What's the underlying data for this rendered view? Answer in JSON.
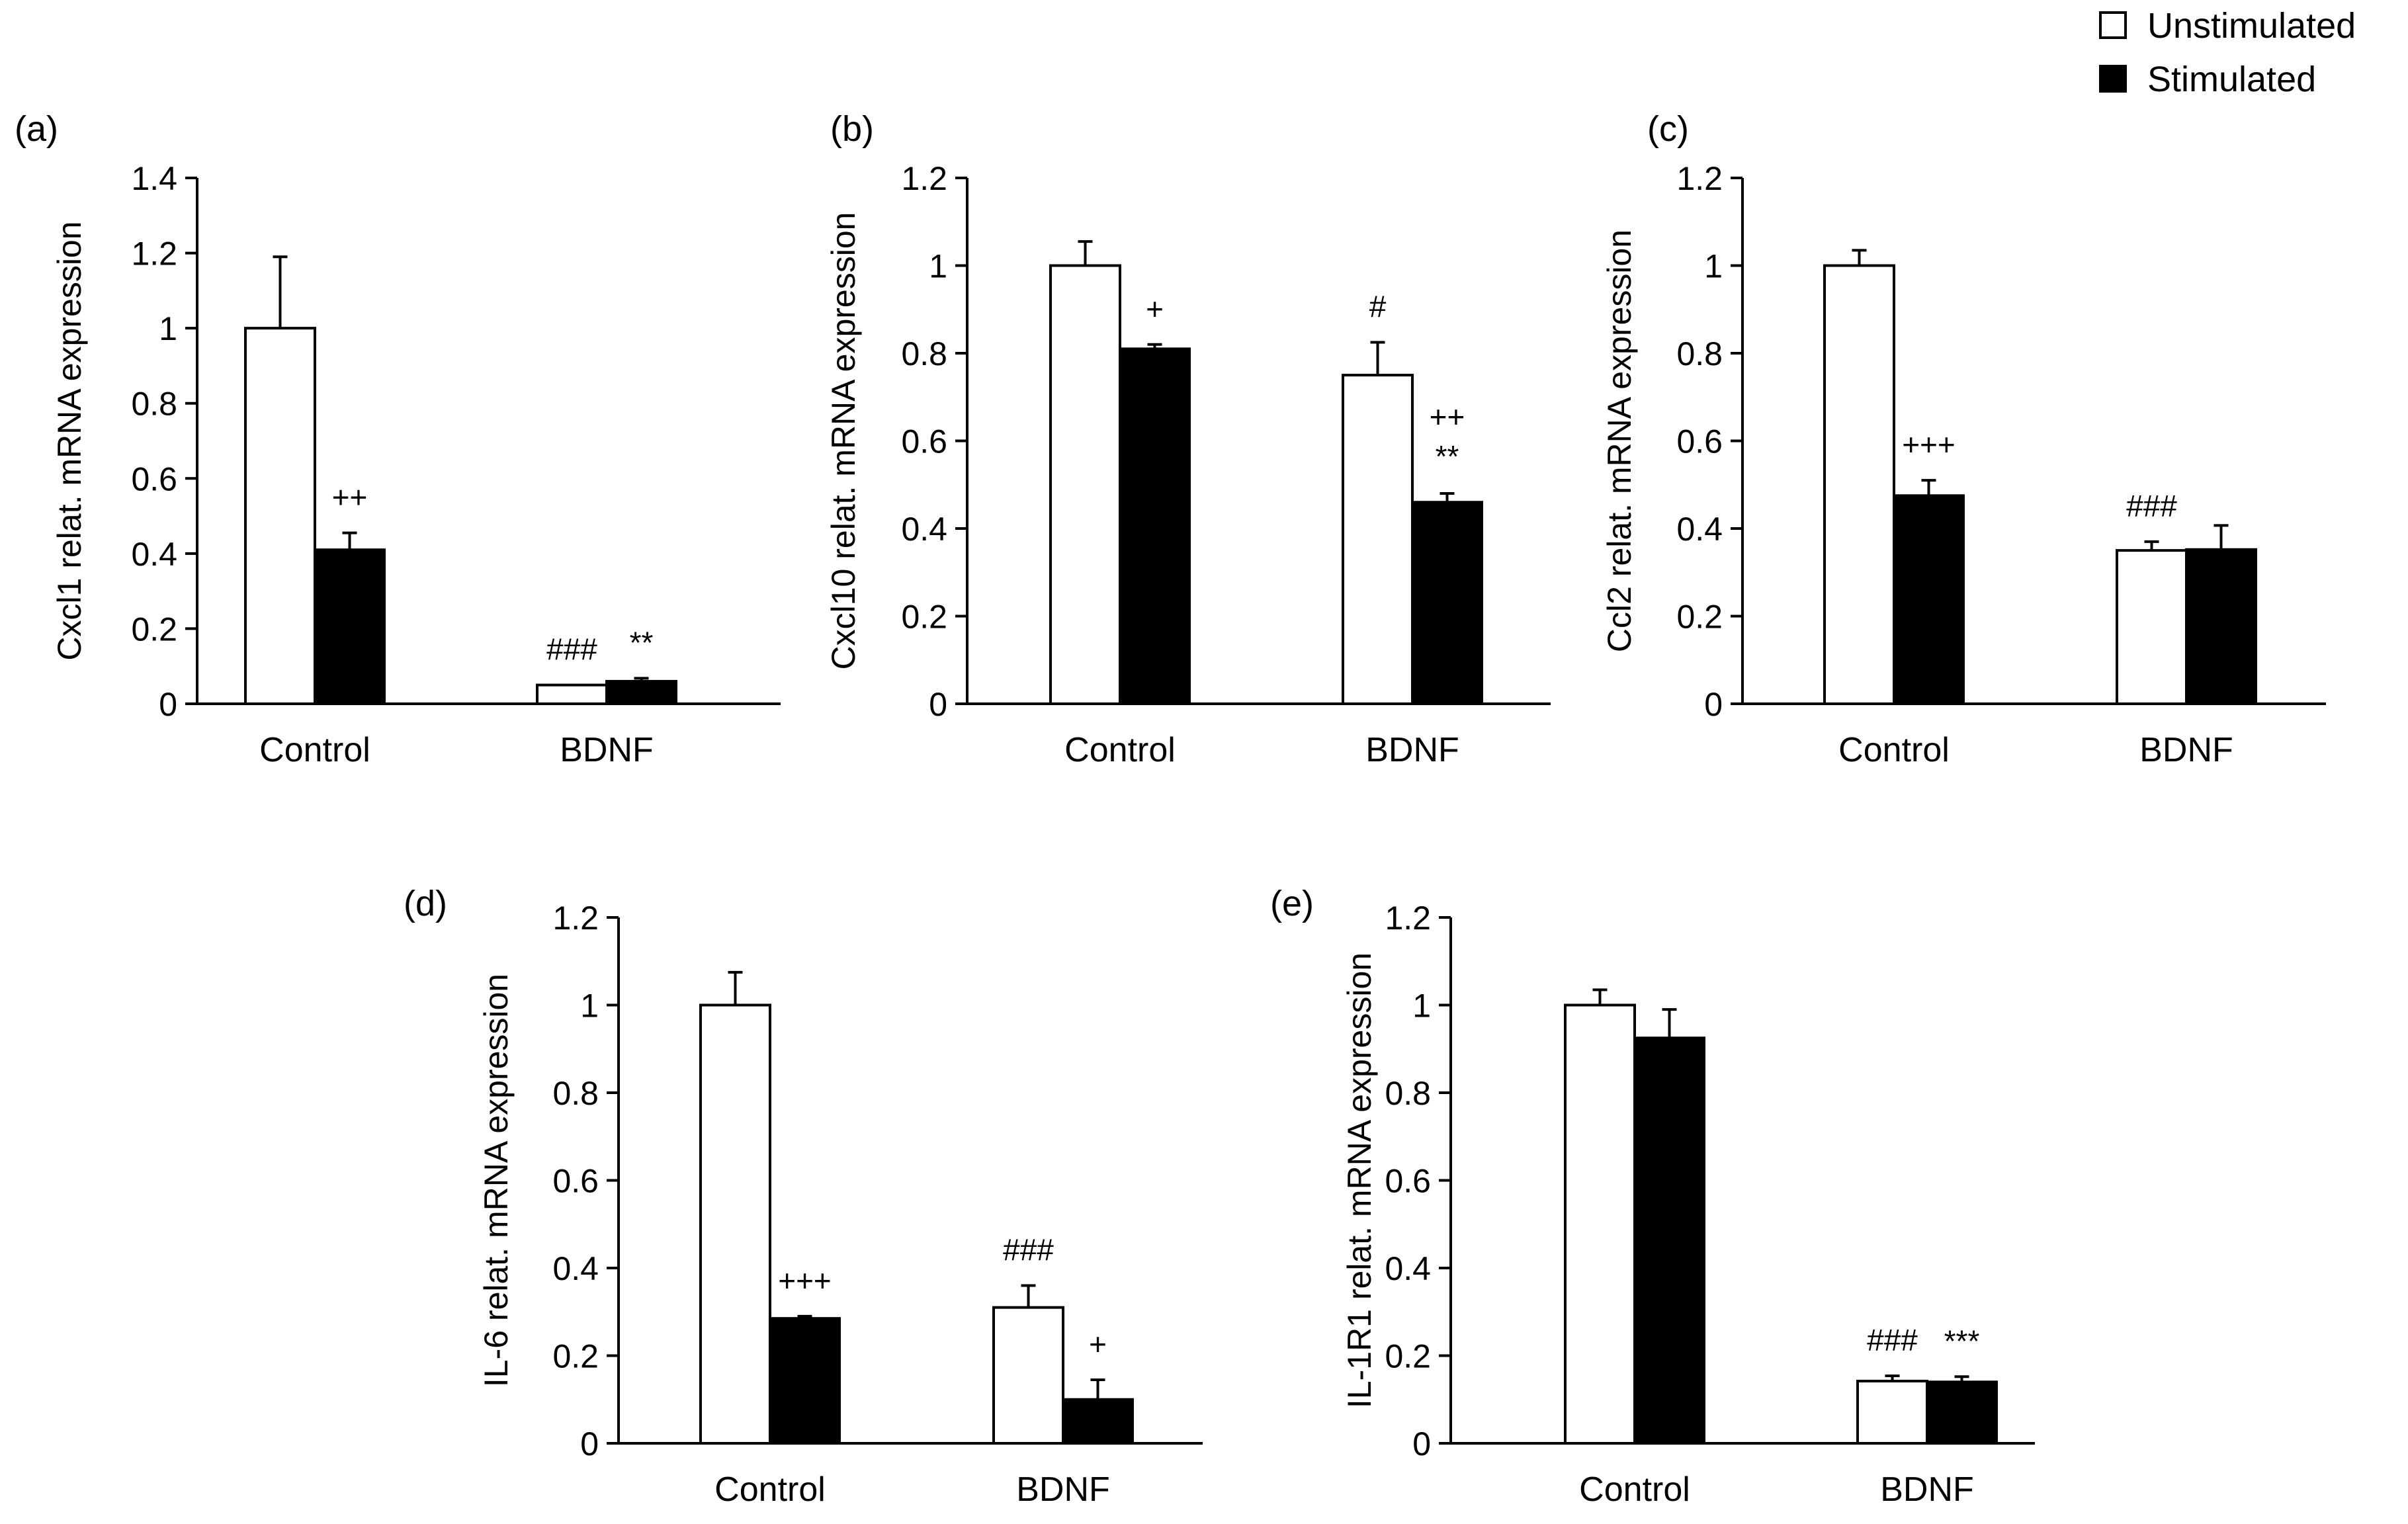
{
  "legend": {
    "unstimulated": "Unstimulated",
    "stimulated": "Stimulated",
    "unstimulated_color": "#ffffff",
    "stimulated_color": "#000000"
  },
  "chart_data": [
    {
      "panel": "(a)",
      "type": "bar",
      "ylabel": "Cxcl1  relat. mRNA expression",
      "categories": [
        "Control",
        "BDNF"
      ],
      "ylim": [
        0,
        1.4
      ],
      "yticks": [
        "0",
        "0.2",
        "0.4",
        "0.6",
        "0.8",
        "1",
        "1.2",
        "1.4"
      ],
      "series": [
        {
          "name": "Unstimulated",
          "values": [
            1.0,
            0.05
          ],
          "errors": [
            0.19,
            0.0
          ]
        },
        {
          "name": "Stimulated",
          "values": [
            0.41,
            0.06
          ],
          "errors": [
            0.045,
            0.008
          ]
        }
      ],
      "annotations": [
        {
          "text": "++",
          "category": 0,
          "series": 1
        },
        {
          "text": "###",
          "category": 1,
          "series": 0
        },
        {
          "text": "**",
          "category": 1,
          "series": 1
        }
      ]
    },
    {
      "panel": "(b)",
      "type": "bar",
      "ylabel": "Cxcl10  relat. mRNA expression",
      "categories": [
        "Control",
        "BDNF"
      ],
      "ylim": [
        0,
        1.2
      ],
      "yticks": [
        "0",
        "0.2",
        "0.4",
        "0.6",
        "0.8",
        "1",
        "1.2"
      ],
      "series": [
        {
          "name": "Unstimulated",
          "values": [
            1.0,
            0.75
          ],
          "errors": [
            0.055,
            0.075
          ]
        },
        {
          "name": "Stimulated",
          "values": [
            0.81,
            0.46
          ],
          "errors": [
            0.01,
            0.02
          ]
        }
      ],
      "annotations": [
        {
          "text": "+",
          "category": 0,
          "series": 1
        },
        {
          "text": "#",
          "category": 1,
          "series": 0
        },
        {
          "text": "++",
          "category": 1,
          "series": 1,
          "line": 0
        },
        {
          "text": "**",
          "category": 1,
          "series": 1,
          "line": 1
        }
      ]
    },
    {
      "panel": "(c)",
      "type": "bar",
      "ylabel": "Ccl2  relat. mRNA expression",
      "categories": [
        "Control",
        "BDNF"
      ],
      "ylim": [
        0,
        1.2
      ],
      "yticks": [
        "0",
        "0.2",
        "0.4",
        "0.6",
        "0.8",
        "1",
        "1.2"
      ],
      "series": [
        {
          "name": "Unstimulated",
          "values": [
            1.0,
            0.35
          ],
          "errors": [
            0.035,
            0.02
          ]
        },
        {
          "name": "Stimulated",
          "values": [
            0.475,
            0.352
          ],
          "errors": [
            0.035,
            0.055
          ]
        }
      ],
      "annotations": [
        {
          "text": "+++",
          "category": 0,
          "series": 1
        },
        {
          "text": "###",
          "category": 1,
          "series": 0
        }
      ]
    },
    {
      "panel": "(d)",
      "type": "bar",
      "ylabel": "IL-6  relat. mRNA expression",
      "categories": [
        "Control",
        "BDNF"
      ],
      "ylim": [
        0,
        1.2
      ],
      "yticks": [
        "0",
        "0.2",
        "0.4",
        "0.6",
        "0.8",
        "1",
        "1.2"
      ],
      "series": [
        {
          "name": "Unstimulated",
          "values": [
            1.0,
            0.31
          ],
          "errors": [
            0.075,
            0.05
          ]
        },
        {
          "name": "Stimulated",
          "values": [
            0.285,
            0.1
          ],
          "errors": [
            0.005,
            0.045
          ]
        }
      ],
      "annotations": [
        {
          "text": "+++",
          "category": 0,
          "series": 1
        },
        {
          "text": "###",
          "category": 1,
          "series": 0
        },
        {
          "text": "+",
          "category": 1,
          "series": 1
        }
      ]
    },
    {
      "panel": "(e)",
      "type": "bar",
      "ylabel": "IL-1R1  relat. mRNA expression",
      "categories": [
        "Control",
        "BDNF"
      ],
      "ylim": [
        0,
        1.2
      ],
      "yticks": [
        "0",
        "0.2",
        "0.4",
        "0.6",
        "0.8",
        "1",
        "1.2"
      ],
      "series": [
        {
          "name": "Unstimulated",
          "values": [
            1.0,
            0.142
          ],
          "errors": [
            0.035,
            0.012
          ]
        },
        {
          "name": "Stimulated",
          "values": [
            0.925,
            0.14
          ],
          "errors": [
            0.065,
            0.012
          ]
        }
      ],
      "annotations": [
        {
          "text": "###",
          "category": 1,
          "series": 0
        },
        {
          "text": "***",
          "category": 1,
          "series": 1
        }
      ]
    }
  ]
}
